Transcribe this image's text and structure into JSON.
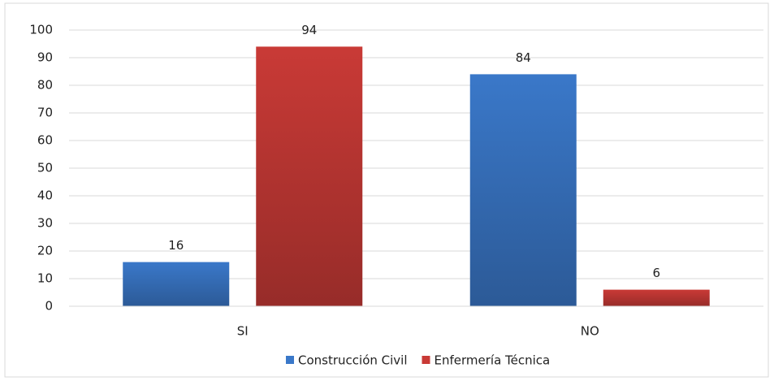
{
  "chart_data": {
    "type": "bar",
    "categories": [
      "SI",
      "NO"
    ],
    "series": [
      {
        "name": "Construcción Civil",
        "color": "#3a78c9",
        "values": [
          16,
          84
        ]
      },
      {
        "name": "Enfermería Técnica",
        "color": "#c93a36",
        "values": [
          94,
          6
        ]
      }
    ],
    "ylim": [
      0,
      100
    ],
    "yticks": [
      0,
      10,
      20,
      30,
      40,
      50,
      60,
      70,
      80,
      90,
      100
    ],
    "grid": true,
    "legend": "bottom",
    "data_labels": true
  }
}
